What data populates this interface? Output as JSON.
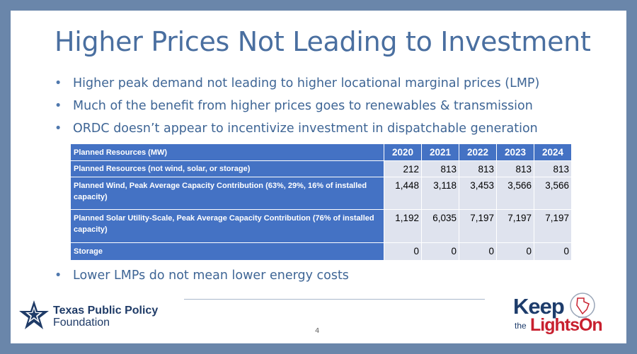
{
  "slide": {
    "title": "Higher Prices Not Leading to Investment",
    "bullets": [
      "Higher peak demand not leading to higher locational marginal prices (LMP)",
      "Much of the benefit from higher prices goes to renewables & transmission",
      "ORDC doesn’t appear to incentivize investment in dispatchable generation"
    ],
    "last_bullet": "Lower LMPs do not mean lower energy costs",
    "page_number": "4"
  },
  "table": {
    "header_label": "Planned Resources (MW)",
    "years": [
      "2020",
      "2021",
      "2022",
      "2023",
      "2024"
    ],
    "rows": [
      {
        "label": "Planned Resources (not wind, solar, or storage)",
        "values": [
          "212",
          "813",
          "813",
          "813",
          "813"
        ]
      },
      {
        "label": "Planned Wind, Peak Average Capacity Contribution (63%, 29%, 16% of installed capacity)",
        "values": [
          "1,448",
          "3,118",
          "3,453",
          "3,566",
          "3,566"
        ]
      },
      {
        "label": "Planned Solar Utility-Scale, Peak Average Capacity Contribution (76% of installed capacity)",
        "values": [
          "1,192",
          "6,035",
          "7,197",
          "7,197",
          "7,197"
        ]
      },
      {
        "label": "Storage",
        "values": [
          "0",
          "0",
          "0",
          "0",
          "0"
        ]
      }
    ]
  },
  "logos": {
    "tppf_line1": "Texas Public Policy",
    "tppf_line2": "Foundation",
    "keep": "Keep",
    "the": "the",
    "lights_on": "LightsOn"
  },
  "colors": {
    "frame": "#6a86aa",
    "title": "#4a6fa0",
    "bullet_text": "#3e6595",
    "table_header": "#4472c4",
    "table_cell": "#dfe3ee",
    "brand_red": "#c8202f",
    "brand_navy": "#1d3c6b"
  }
}
